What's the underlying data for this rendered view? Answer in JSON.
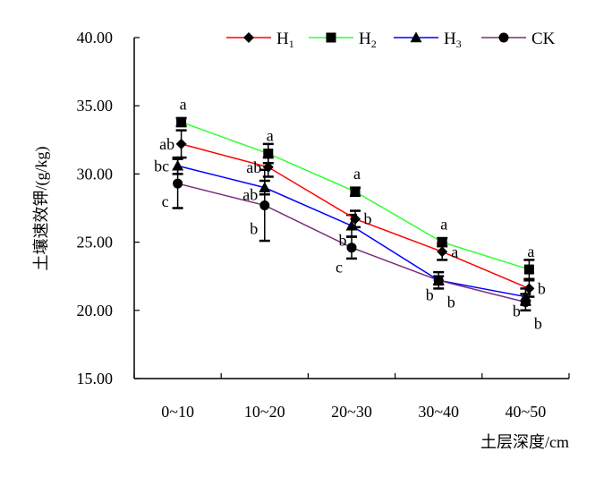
{
  "chart_data": {
    "type": "line",
    "categories": [
      "0~10",
      "10~20",
      "20~30",
      "30~40",
      "40~50"
    ],
    "xlabel": "土层深度/cm",
    "ylabel": "土壤速效钾/(g/kg)",
    "ylim": [
      15,
      40
    ],
    "yticks": [
      "15.00",
      "20.00",
      "25.00",
      "30.00",
      "35.00",
      "40.00"
    ],
    "grid": false,
    "legend_position": "top",
    "series": [
      {
        "name": "H",
        "name_sub": "1",
        "color": "#ff0000",
        "marker": "diamond",
        "values": [
          32.2,
          30.5,
          26.7,
          24.3,
          21.6
        ],
        "errors": [
          1.0,
          0.7,
          0.6,
          0.6,
          0.6
        ],
        "letters": [
          "ab",
          "ab",
          "b",
          "a",
          "b"
        ]
      },
      {
        "name": "H",
        "name_sub": "2",
        "color": "#33ff33",
        "marker": "square",
        "values": [
          33.8,
          31.5,
          28.7,
          25.0,
          23.0
        ],
        "errors": [
          0.3,
          0.7,
          0.3,
          0.3,
          0.7
        ],
        "letters": [
          "a",
          "a",
          "a",
          "a",
          "a"
        ]
      },
      {
        "name": "H",
        "name_sub": "3",
        "color": "#0000ff",
        "marker": "triangle",
        "values": [
          30.6,
          29.0,
          26.2,
          22.2,
          21.0
        ],
        "errors": [
          0.6,
          0.5,
          0.8,
          0.3,
          0.6
        ],
        "letters": [
          "bc",
          "ab",
          "b",
          "b",
          "b"
        ]
      },
      {
        "name": "CK",
        "name_sub": "",
        "color": "#7b2b7b",
        "marker": "circle",
        "values": [
          29.3,
          27.7,
          24.6,
          22.2,
          20.6
        ],
        "errors": [
          1.8,
          2.6,
          0.8,
          0.6,
          0.6
        ],
        "letters": [
          "c",
          "b",
          "c",
          "b",
          "b"
        ]
      }
    ]
  }
}
